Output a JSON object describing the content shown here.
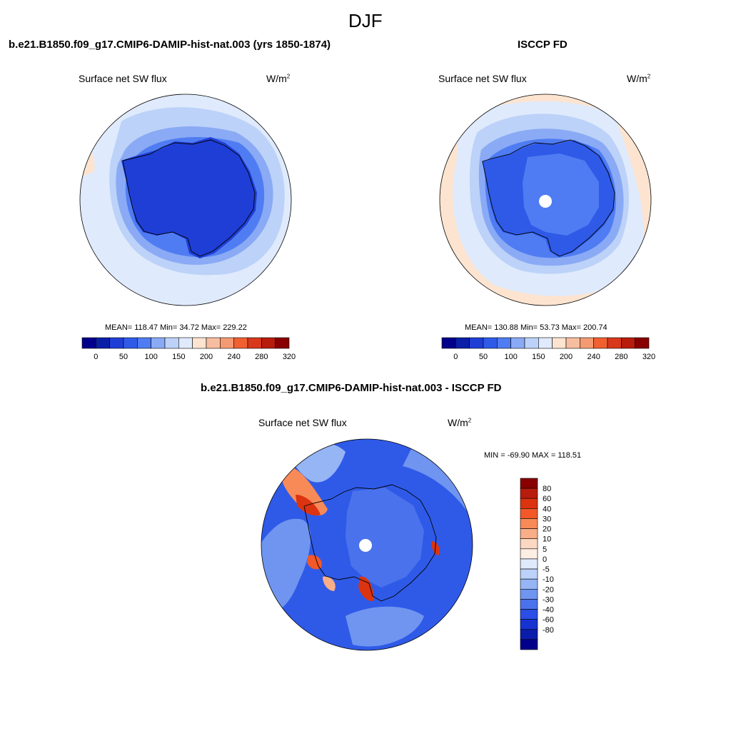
{
  "page": {
    "title": "DJF"
  },
  "panels": {
    "model": {
      "case_title": "b.e21.B1850.f09_g17.CMIP6-DAMIP-hist-nat.003 (yrs 1850-1874)",
      "variable": "Surface net SW flux",
      "units": "W/m",
      "units_sup": "2",
      "stats": "MEAN= 118.47  Min=  34.72  Max= 229.22"
    },
    "obs": {
      "case_title": "ISCCP FD",
      "variable": "Surface net SW flux",
      "units": "W/m",
      "units_sup": "2",
      "stats": "MEAN= 130.88  Min=  53.73  Max= 200.74"
    },
    "diff": {
      "case_title": "b.e21.B1850.f09_g17.CMIP6-DAMIP-hist-nat.003 - ISCCP FD",
      "variable": "Surface net SW flux",
      "units": "W/m",
      "units_sup": "2",
      "stats": "MIN = -69.90 MAX = 118.51"
    }
  },
  "colorbar_abs": {
    "colors": [
      "#00008a",
      "#0a1fa8",
      "#1f3ed6",
      "#2f5ae8",
      "#4f7cf2",
      "#8aaaf5",
      "#bcd2f8",
      "#dfeafc",
      "#fde4d0",
      "#f7bda0",
      "#f49a72",
      "#f06030",
      "#d8381c",
      "#b81c0c",
      "#880000"
    ],
    "tick_labels": [
      "0",
      "50",
      "100",
      "150",
      "200",
      "240",
      "280",
      "320"
    ]
  },
  "colorbar_diff": {
    "colors": [
      "#880000",
      "#b81c0c",
      "#dc3410",
      "#f25828",
      "#f88a58",
      "#f9ae88",
      "#fcd8c2",
      "#fdeee4",
      "#dfeafc",
      "#bcd2f8",
      "#95b5f4",
      "#6f95f0",
      "#4a72ec",
      "#2a4ee6",
      "#1633d2",
      "#0b1cad",
      "#00008a"
    ],
    "tick_labels": [
      "80",
      "60",
      "40",
      "30",
      "20",
      "10",
      "5",
      "0",
      "-5",
      "-10",
      "-20",
      "-30",
      "-40",
      "-60",
      "-80"
    ]
  },
  "map_colors": {
    "ocean_light": "#dfeafc",
    "ocean_mid": "#bcd2f8",
    "band": "#8aaaf5",
    "band2": "#4f7cf2",
    "ice_dark": "#1f3ed6",
    "ice_mid": "#2f5ae8",
    "warm": "#fde4d0",
    "warm2": "#f7bda0",
    "hot": "#f06030",
    "hotter": "#d8381c",
    "pole_mask": "#ffffff",
    "diff_base": "#2f5ae8",
    "diff_light": "#6f95f0",
    "diff_pale": "#95b5f4"
  }
}
